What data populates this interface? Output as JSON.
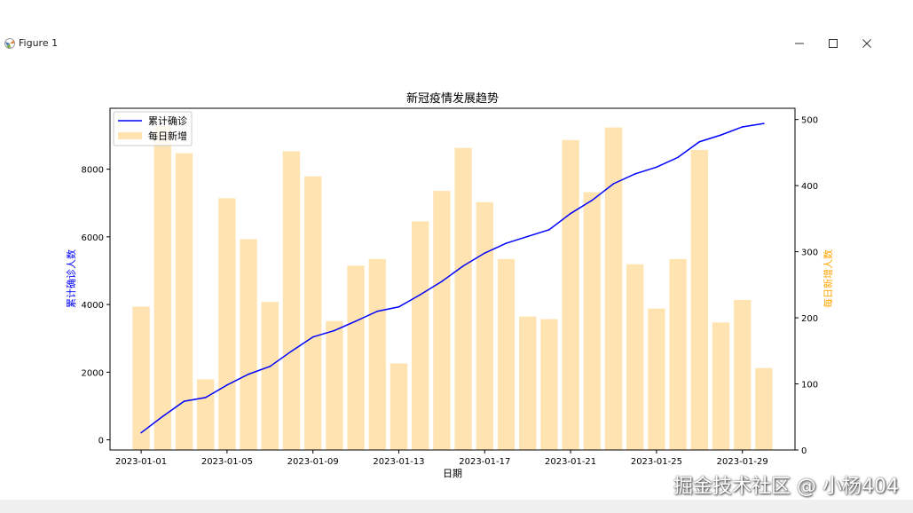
{
  "window": {
    "title": "Figure 1",
    "icon": "matplotlib-icon",
    "controls": [
      "minimize-icon",
      "maximize-icon",
      "close-icon"
    ]
  },
  "watermark": "掘金技术社区 @ 小杨404",
  "colors": {
    "line": "#0000ff",
    "bars": "#ffa500",
    "left_axis_label": "#0000ff",
    "right_axis_label": "#ffa500"
  },
  "chart_data": {
    "type": "bar+line",
    "title": "新冠疫情发展趋势",
    "xlabel": "日期",
    "ylabel_left": "累计确诊人数",
    "ylabel_right": "每日新增人数",
    "x": [
      "2023-01-01",
      "2023-01-02",
      "2023-01-03",
      "2023-01-04",
      "2023-01-05",
      "2023-01-06",
      "2023-01-07",
      "2023-01-08",
      "2023-01-09",
      "2023-01-10",
      "2023-01-11",
      "2023-01-12",
      "2023-01-13",
      "2023-01-14",
      "2023-01-15",
      "2023-01-16",
      "2023-01-17",
      "2023-01-18",
      "2023-01-19",
      "2023-01-20",
      "2023-01-21",
      "2023-01-22",
      "2023-01-23",
      "2023-01-24",
      "2023-01-25",
      "2023-01-26",
      "2023-01-27",
      "2023-01-28",
      "2023-01-29",
      "2023-01-30"
    ],
    "xticks": [
      "2023-01-01",
      "2023-01-05",
      "2023-01-09",
      "2023-01-13",
      "2023-01-17",
      "2023-01-21",
      "2023-01-25",
      "2023-01-29"
    ],
    "yticks_left": [
      0,
      2000,
      4000,
      6000,
      8000
    ],
    "yticks_right": [
      0,
      100,
      200,
      300,
      400,
      500
    ],
    "ylim_left": [
      -300,
      9800
    ],
    "ylim_right": [
      0,
      517
    ],
    "series": [
      {
        "name": "累计确诊",
        "type": "line",
        "axis": "left",
        "color": "#0000ff",
        "values": [
          210,
          690,
          1140,
          1250,
          1620,
          1940,
          2170,
          2620,
          3040,
          3230,
          3510,
          3800,
          3930,
          4290,
          4680,
          5140,
          5520,
          5810,
          6010,
          6210,
          6690,
          7080,
          7570,
          7860,
          8060,
          8350,
          8810,
          9010,
          9250,
          9350
        ]
      },
      {
        "name": "每日新增",
        "type": "bar",
        "axis": "right",
        "color": "#ffa500",
        "values": [
          217,
          490,
          449,
          107,
          381,
          319,
          224,
          452,
          414,
          195,
          279,
          289,
          131,
          346,
          392,
          457,
          375,
          289,
          202,
          198,
          469,
          390,
          488,
          281,
          214,
          289,
          454,
          193,
          227,
          124
        ]
      }
    ],
    "legend": {
      "placement": "upper left",
      "entries": [
        "累计确诊",
        "每日新增"
      ]
    },
    "grid": false
  }
}
